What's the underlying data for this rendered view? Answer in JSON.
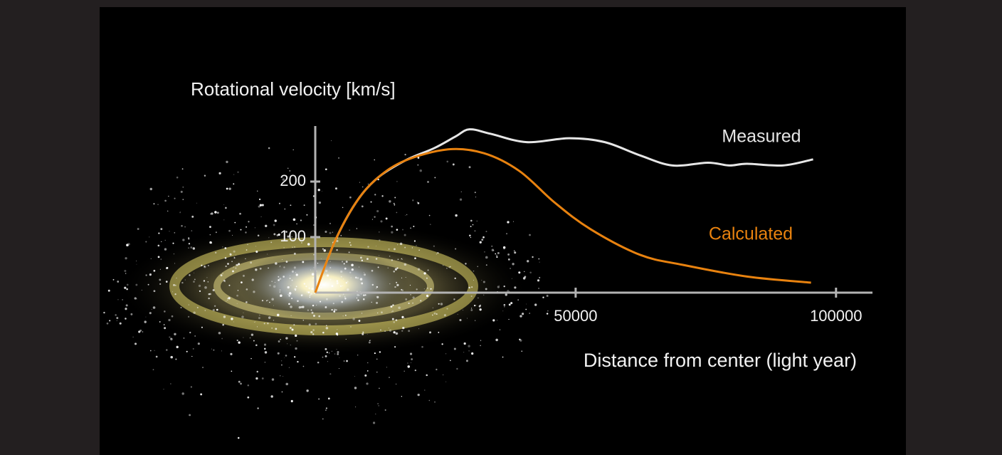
{
  "chart_data": {
    "type": "line",
    "title": "Rotational velocity [km/s]",
    "x_label": "Distance from center (light year)",
    "xlim": [
      0,
      107000
    ],
    "ylim": [
      0,
      300
    ],
    "xticks": [
      50000,
      100000
    ],
    "yticks": [
      100,
      200
    ],
    "series": [
      {
        "name": "Measured",
        "color": "#e6e6e6",
        "x": [
          0,
          3700,
          7800,
          11900,
          17300,
          22800,
          26900,
          29600,
          33700,
          40600,
          48800,
          55600,
          62400,
          68600,
          75400,
          79500,
          82900,
          89800,
          95600
        ],
        "values": [
          0,
          91,
          162,
          206,
          238,
          260,
          281,
          294,
          286,
          271,
          278,
          271,
          247,
          229,
          234,
          229,
          232,
          229,
          240
        ]
      },
      {
        "name": "Calculated",
        "color": "#e8820f",
        "x": [
          0,
          3700,
          7800,
          11900,
          17300,
          25500,
          32400,
          39200,
          46000,
          52900,
          62400,
          70600,
          82900,
          95200
        ],
        "values": [
          0,
          91,
          162,
          206,
          238,
          258,
          251,
          219,
          162,
          114,
          68,
          50,
          29,
          18
        ]
      }
    ]
  }
}
